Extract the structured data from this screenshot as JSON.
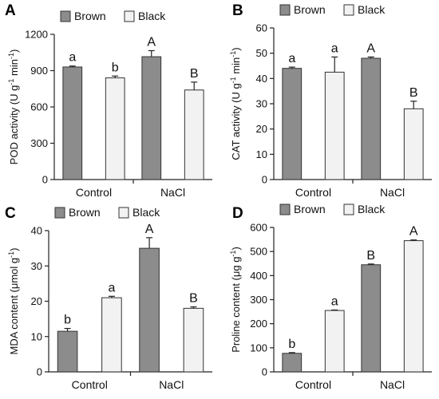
{
  "chart_data": [
    {
      "panel": "A",
      "type": "bar",
      "categories": [
        "Control",
        "NaCl"
      ],
      "series": [
        {
          "name": "Brown",
          "values": [
            930,
            1015
          ],
          "errors": [
            8,
            50
          ],
          "letters": [
            "a",
            "A"
          ]
        },
        {
          "name": "Black",
          "values": [
            840,
            740
          ],
          "errors": [
            15,
            65
          ],
          "letters": [
            "b",
            "B"
          ]
        }
      ],
      "ylabel": "POD activity (U g",
      "ylabel_sup1": "-1",
      "ylabel_mid": " min",
      "ylabel_sup2": "-1",
      "ylabel_end": ")",
      "ylim": [
        0,
        1200
      ],
      "yticks": [
        "0",
        "300",
        "600",
        "900",
        "1200"
      ],
      "legend": "top"
    },
    {
      "panel": "B",
      "type": "bar",
      "categories": [
        "Control",
        "NaCl"
      ],
      "series": [
        {
          "name": "Brown",
          "values": [
            44,
            48
          ],
          "errors": [
            0.5,
            0.5
          ],
          "letters": [
            "a",
            "A"
          ]
        },
        {
          "name": "Black",
          "values": [
            42.5,
            28
          ],
          "errors": [
            6,
            3
          ],
          "letters": [
            "a",
            "B"
          ]
        }
      ],
      "ylabel": "CAT activity (U g",
      "ylabel_sup1": "-1",
      "ylabel_mid": " min",
      "ylabel_sup2": "-1",
      "ylabel_end": ")",
      "ylim": [
        0,
        60
      ],
      "yticks": [
        "0",
        "10",
        "20",
        "30",
        "40",
        "50",
        "60"
      ],
      "legend": "top"
    },
    {
      "panel": "C",
      "type": "bar",
      "categories": [
        "Control",
        "NaCl"
      ],
      "series": [
        {
          "name": "Brown",
          "values": [
            11.5,
            35
          ],
          "errors": [
            0.8,
            3
          ],
          "letters": [
            "b",
            "A"
          ]
        },
        {
          "name": "Black",
          "values": [
            21,
            18
          ],
          "errors": [
            0.4,
            0.4
          ],
          "letters": [
            "a",
            "B"
          ]
        }
      ],
      "ylabel": "MDA content (μmol g",
      "ylabel_sup1": "-1",
      "ylabel_mid": "",
      "ylabel_sup2": "",
      "ylabel_end": ")",
      "ylim": [
        0,
        40
      ],
      "yticks": [
        "0",
        "10",
        "20",
        "30",
        "40"
      ],
      "legend": "top"
    },
    {
      "panel": "D",
      "type": "bar",
      "categories": [
        "Control",
        "NaCl"
      ],
      "series": [
        {
          "name": "Brown",
          "values": [
            77,
            445
          ],
          "errors": [
            3,
            3
          ],
          "letters": [
            "b",
            "B"
          ]
        },
        {
          "name": "Black",
          "values": [
            255,
            545
          ],
          "errors": [
            2,
            3
          ],
          "letters": [
            "a",
            "A"
          ]
        }
      ],
      "ylabel": "Proline content (μg g",
      "ylabel_sup1": "-1",
      "ylabel_mid": "",
      "ylabel_sup2": "",
      "ylabel_end": ")",
      "ylim": [
        0,
        600
      ],
      "yticks": [
        "0",
        "100",
        "200",
        "300",
        "400",
        "500",
        "600"
      ],
      "legend": "top"
    }
  ],
  "colors": {
    "brown": "#8c8c8c",
    "black": "#f2f2f2"
  }
}
